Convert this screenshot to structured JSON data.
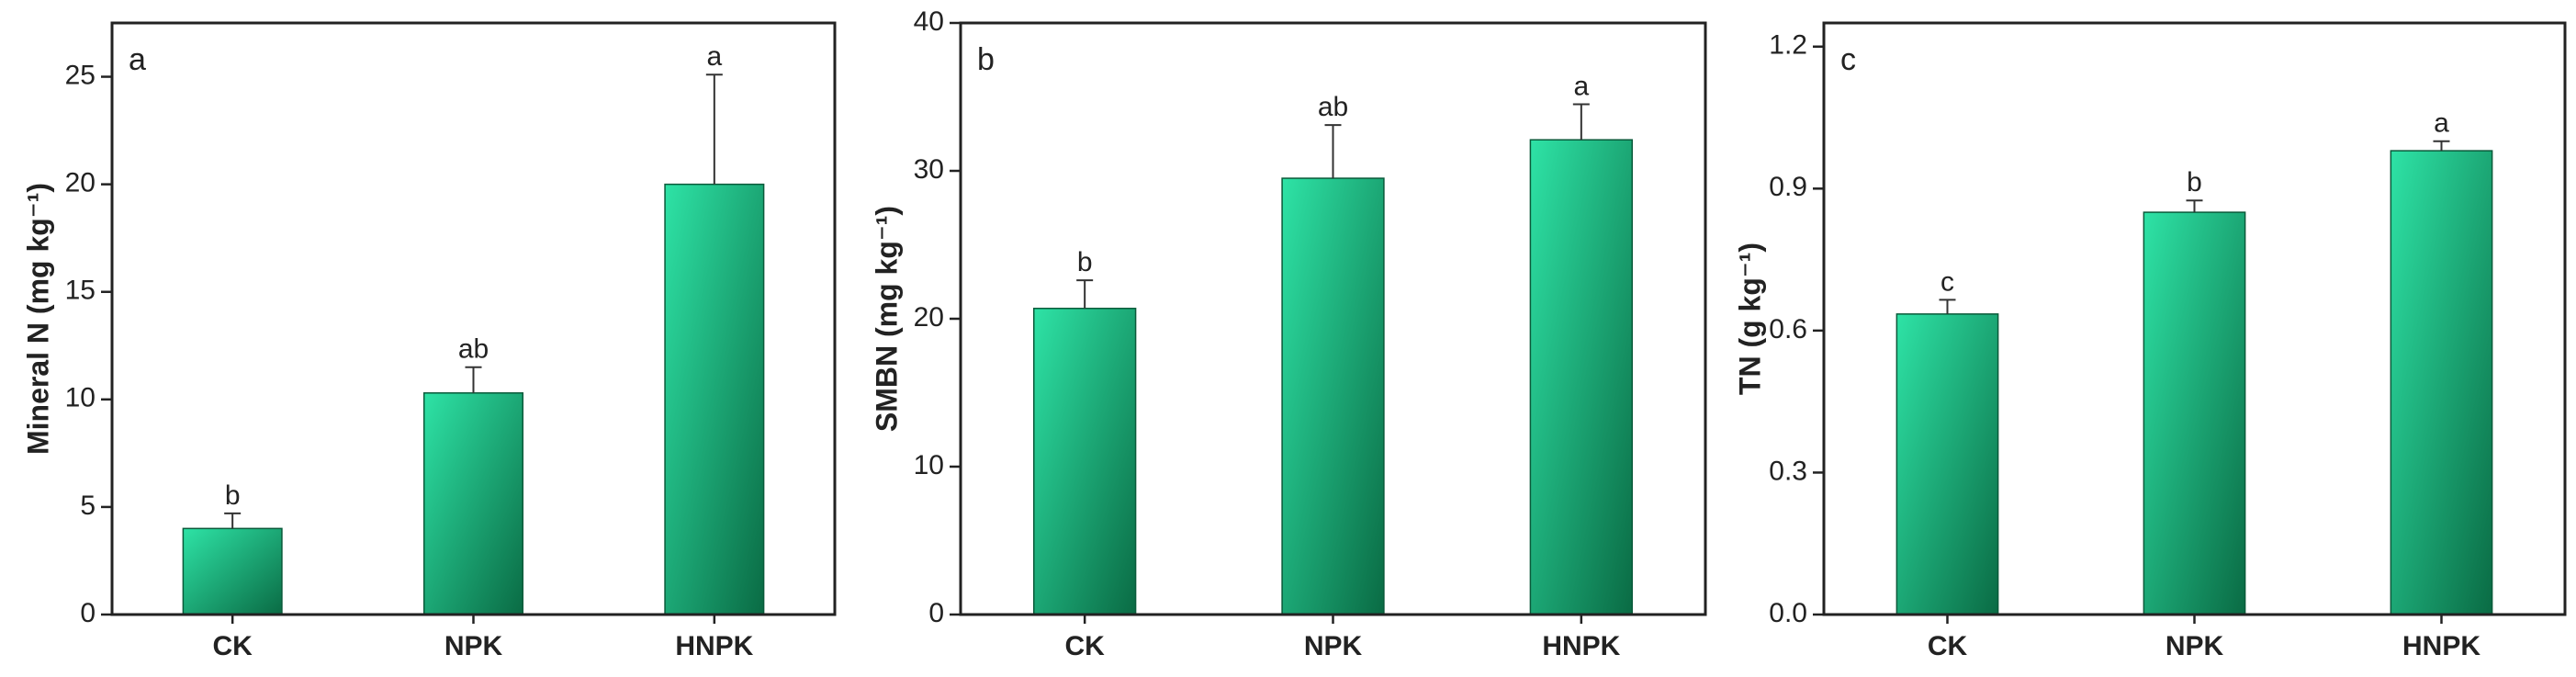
{
  "chart_data": [
    {
      "type": "bar",
      "panel": "a",
      "ylabel": "Mineral N (mg kg⁻¹)",
      "categories": [
        "CK",
        "NPK",
        "HNPK"
      ],
      "values": [
        4.0,
        10.3,
        20.0
      ],
      "errors": [
        0.7,
        1.2,
        5.1
      ],
      "letters": [
        "b",
        "ab",
        "a"
      ],
      "colors": [
        "#2ee3a6",
        "#0a6b44"
      ],
      "ylim": [
        0,
        27.5
      ],
      "yticks": [
        0,
        5,
        10,
        15,
        20,
        25
      ]
    },
    {
      "type": "bar",
      "panel": "b",
      "ylabel": "SMBN (mg kg⁻¹)",
      "categories": [
        "CK",
        "NPK",
        "HNPK"
      ],
      "values": [
        20.7,
        29.5,
        32.1
      ],
      "errors": [
        1.9,
        3.6,
        2.4
      ],
      "letters": [
        "b",
        "ab",
        "a"
      ],
      "colors": [
        "#2ee3a6",
        "#0a6b44"
      ],
      "ylim": [
        0,
        40
      ],
      "yticks": [
        0,
        10,
        20,
        30,
        40
      ]
    },
    {
      "type": "bar",
      "panel": "c",
      "ylabel": "TN (g kg⁻¹)",
      "categories": [
        "CK",
        "NPK",
        "HNPK"
      ],
      "values": [
        0.635,
        0.85,
        0.98
      ],
      "errors": [
        0.03,
        0.025,
        0.02
      ],
      "letters": [
        "c",
        "b",
        "a"
      ],
      "colors": [
        "#2ee3a6",
        "#0a6b44"
      ],
      "ylim": [
        0,
        1.25
      ],
      "yticks": [
        {
          "value": 0,
          "label": "0.0"
        },
        0.3,
        0.6,
        0.9,
        1.2
      ]
    }
  ]
}
